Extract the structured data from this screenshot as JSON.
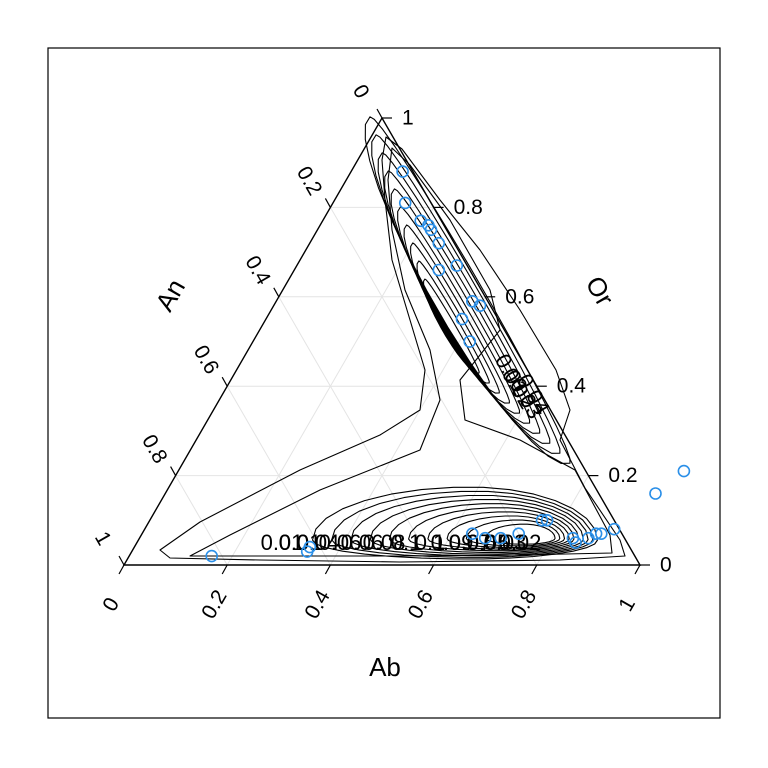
{
  "chart_data": {
    "type": "scatter",
    "subtype": "ternary",
    "title": "",
    "axes": {
      "bottom": {
        "label": "Ab",
        "ticks": [
          "0",
          "0.2",
          "0.4",
          "0.6",
          "0.8",
          "1"
        ]
      },
      "right": {
        "label": "Or",
        "ticks": [
          "0",
          "0.2",
          "0.4",
          "0.6",
          "0.8",
          "1"
        ]
      },
      "left": {
        "label": "An",
        "ticks": [
          "0",
          "0.2",
          "0.4",
          "0.6",
          "0.8",
          "1"
        ]
      }
    },
    "ranges": {
      "Ab": [
        0,
        1
      ],
      "Or": [
        0,
        1
      ],
      "An": [
        0,
        1
      ]
    },
    "grid": true,
    "grid_step": 0.2,
    "point_color": "#2a8fe8",
    "contour_color": "#000000",
    "contour_level_labels": [
      "0.01",
      "0.02",
      "0.03",
      "0.04",
      "0.05",
      "0.06",
      "0.07",
      "0.08",
      "0.09",
      "0.1"
    ],
    "contour_label_text": [
      "0.01",
      "0.01",
      "0.04",
      "0.06",
      "0.06",
      "0.08",
      "0.1",
      "0.1",
      "0.09",
      "0.07",
      "0.05",
      "0.03",
      "0.02"
    ],
    "points": [
      {
        "Ab": 0.16,
        "Or": 0.02
      },
      {
        "Ab": 0.34,
        "Or": 0.03
      },
      {
        "Ab": 0.34,
        "Or": 0.04
      },
      {
        "Ab": 0.64,
        "Or": 0.07
      },
      {
        "Ab": 0.67,
        "Or": 0.06
      },
      {
        "Ab": 0.7,
        "Or": 0.06
      },
      {
        "Ab": 0.73,
        "Or": 0.07
      },
      {
        "Ab": 0.76,
        "Or": 0.1
      },
      {
        "Ab": 0.77,
        "Or": 0.1
      },
      {
        "Ab": 0.84,
        "Or": 0.06
      },
      {
        "Ab": 0.85,
        "Or": 0.05
      },
      {
        "Ab": 0.87,
        "Or": 0.06
      },
      {
        "Ab": 0.88,
        "Or": 0.07
      },
      {
        "Ab": 0.89,
        "Or": 0.07
      },
      {
        "Ab": 0.91,
        "Or": 0.08
      },
      {
        "Ab": 0.95,
        "Or": 0.16
      },
      {
        "Ab": 0.98,
        "Or": 0.21
      },
      {
        "Ab": 0.1,
        "Or": 0.88
      },
      {
        "Ab": 0.14,
        "Or": 0.81
      },
      {
        "Ab": 0.19,
        "Or": 0.77
      },
      {
        "Ab": 0.21,
        "Or": 0.76
      },
      {
        "Ab": 0.22,
        "Or": 0.75
      },
      {
        "Ab": 0.25,
        "Or": 0.72
      },
      {
        "Ab": 0.28,
        "Or": 0.66
      },
      {
        "Ab": 0.31,
        "Or": 0.67
      },
      {
        "Ab": 0.38,
        "Or": 0.59
      },
      {
        "Ab": 0.38,
        "Or": 0.55
      },
      {
        "Ab": 0.4,
        "Or": 0.58
      },
      {
        "Ab": 0.42,
        "Or": 0.5
      }
    ]
  }
}
